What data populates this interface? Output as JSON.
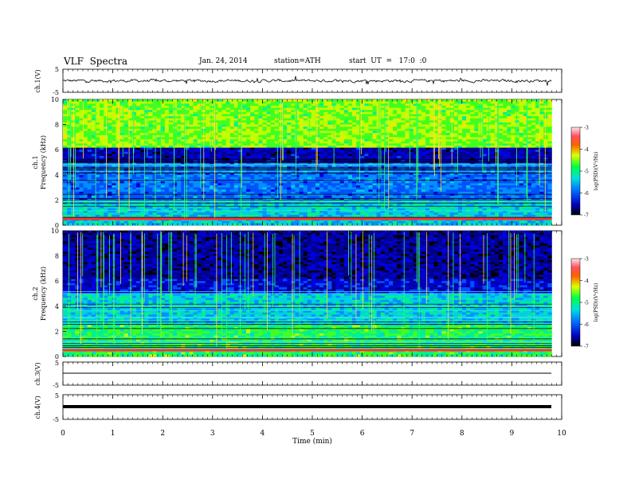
{
  "header": {
    "title": "VLF  Spectra",
    "date": "Jan. 24, 2014",
    "station": "station=ATH",
    "start": "start  UT  =   17:0  :0"
  },
  "chart_data": [
    {
      "type": "line",
      "panel": "ch1-waveform",
      "ylabel": "ch.1(V)",
      "yticks": [
        "5",
        "-5"
      ],
      "ylim": [
        -5,
        5
      ],
      "description_values": {
        "mean_level": 0,
        "noise_amplitude": 0.7
      }
    },
    {
      "type": "heatmap",
      "panel": "ch1-spectrogram",
      "ylabel": "ch.1\nFrequency  (kHz)",
      "yticks": [
        "0",
        "2",
        "4",
        "6",
        "8",
        "10"
      ],
      "ylim": [
        0,
        10
      ],
      "colorbar": {
        "label": "log(PSD)(V²/Hz)",
        "ticks": [
          "-3",
          "-4",
          "-5",
          "-6",
          "-7"
        ],
        "range": [
          -7,
          -3
        ]
      }
    },
    {
      "type": "heatmap",
      "panel": "ch2-spectrogram",
      "ylabel": "ch.2\nFrequency  (kHz)",
      "yticks": [
        "0",
        "2",
        "4",
        "6",
        "8",
        "10"
      ],
      "ylim": [
        0,
        10
      ],
      "colorbar": {
        "label": "log(PSD)(V²/Hz)",
        "ticks": [
          "-3",
          "-4",
          "-5",
          "-6",
          "-7"
        ],
        "range": [
          -7,
          -3
        ]
      }
    },
    {
      "type": "line",
      "panel": "ch3-waveform",
      "ylabel": "ch.3(V)",
      "yticks": [
        "5",
        "-5"
      ],
      "ylim": [
        -5,
        5
      ]
    },
    {
      "type": "line",
      "panel": "ch4-waveform",
      "ylabel": "ch.4(V)",
      "yticks": [
        "5",
        "-5"
      ],
      "ylim": [
        -5,
        5
      ]
    }
  ],
  "x_axis": {
    "label": "Time  (min)",
    "ticks": [
      "0",
      "1",
      "2",
      "3",
      "4",
      "5",
      "6",
      "7",
      "8",
      "9",
      "10"
    ],
    "range": [
      0,
      10
    ],
    "data_end": 9.8
  }
}
